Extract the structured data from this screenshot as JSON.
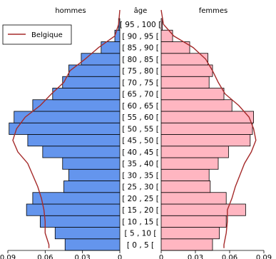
{
  "chart_data": {
    "type": "bar",
    "headers": {
      "men": "hommes",
      "age": "âge",
      "women": "femmes"
    },
    "legend": {
      "label": "Belgique",
      "color": "#a52a2a"
    },
    "colors": {
      "men": "#6495ed",
      "women": "#ffb6c1"
    },
    "age_groups": [
      "[0,5[",
      "[5,10[",
      "[10,15[",
      "[15,20[",
      "[20,25[",
      "[25,30[",
      "[30,35[",
      "[35,40[",
      "[40,45[",
      "[45,50[",
      "[50,55[",
      "[55,60[",
      "[60,65[",
      "[65,70[",
      "[70,75[",
      "[75,80[",
      "[80,85[",
      "[85,90[",
      "[90,95[",
      "[95,100["
    ],
    "age_labels": [
      "[ 0 , 5 [",
      "[ 5 , 10 [",
      "[ 10 , 15 [",
      "[ 15 , 20 [",
      "[ 20 , 25 [",
      "[ 25 , 30 [",
      "[ 30 , 35 [",
      "[ 35 , 40 [",
      "[ 40 , 45 [",
      "[ 45 , 50 [",
      "[ 50 , 55 [",
      "[ 55 , 60 [",
      "[ 60 , 65 [",
      "[ 65 , 70 [",
      "[ 70 , 75 [",
      "[ 75 , 80 [",
      "[ 80 , 85 [",
      "[ 85 , 90 [",
      "[ 90 , 95 [",
      "[ 95 , 100 ["
    ],
    "men": [
      0.044,
      0.052,
      0.064,
      0.075,
      0.07,
      0.045,
      0.041,
      0.046,
      0.062,
      0.074,
      0.089,
      0.085,
      0.07,
      0.054,
      0.046,
      0.041,
      0.031,
      0.015,
      0.004,
      0.001
    ],
    "women": [
      0.045,
      0.051,
      0.057,
      0.074,
      0.057,
      0.043,
      0.042,
      0.05,
      0.059,
      0.078,
      0.08,
      0.081,
      0.062,
      0.055,
      0.042,
      0.045,
      0.041,
      0.025,
      0.01,
      0.001
    ],
    "belgique_men": [
      0.057,
      0.06,
      0.06,
      0.061,
      0.063,
      0.066,
      0.07,
      0.074,
      0.082,
      0.086,
      0.083,
      0.076,
      0.064,
      0.055,
      0.045,
      0.04,
      0.028,
      0.017,
      0.004,
      0.001
    ],
    "belgique_women": [
      0.055,
      0.057,
      0.058,
      0.058,
      0.062,
      0.065,
      0.069,
      0.073,
      0.079,
      0.083,
      0.081,
      0.077,
      0.068,
      0.056,
      0.05,
      0.045,
      0.039,
      0.028,
      0.011,
      0.002
    ],
    "x_ticks": [
      "0.09",
      "0.06",
      "0.03",
      "0",
      "0",
      "0.03",
      "0.06",
      "0.09"
    ],
    "xlim": [
      0,
      0.09
    ]
  }
}
